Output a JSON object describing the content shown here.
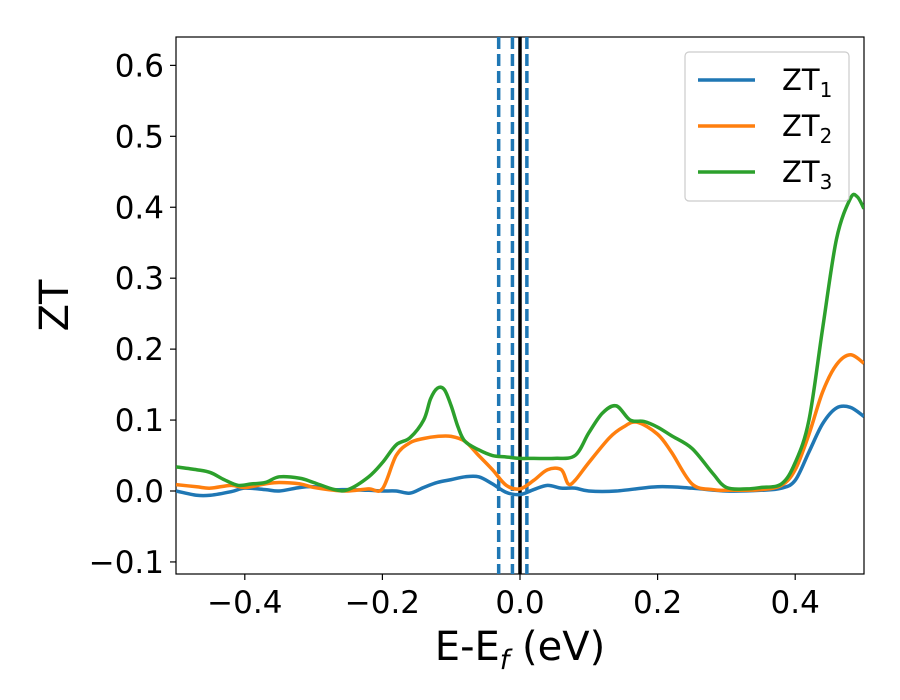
{
  "chart_data": {
    "type": "line",
    "xlabel": "E-E",
    "xlabel_sub": "f",
    "xlabel_unit": " (eV)",
    "ylabel": "ZT",
    "xlim": [
      -0.5,
      0.5
    ],
    "ylim": [
      -0.117,
      0.64
    ],
    "xticks": [
      -0.4,
      -0.2,
      0.0,
      0.2,
      0.4
    ],
    "xtick_labels": [
      "−0.4",
      "−0.2",
      "0.0",
      "0.2",
      "0.4"
    ],
    "yticks": [
      -0.1,
      0.0,
      0.1,
      0.2,
      0.3,
      0.4,
      0.5,
      0.6
    ],
    "ytick_labels": [
      "−0.1",
      "0.0",
      "0.1",
      "0.2",
      "0.3",
      "0.4",
      "0.5",
      "0.6"
    ],
    "grid": false,
    "legend_position": "top-right",
    "vlines": [
      {
        "x": -0.031,
        "color": "#1f77b4",
        "style": "dashed"
      },
      {
        "x": -0.011,
        "color": "#1f77b4",
        "style": "dashed"
      },
      {
        "x": 0.01,
        "color": "#1f77b4",
        "style": "dashed"
      },
      {
        "x": 0.0,
        "color": "#000000",
        "style": "solid"
      }
    ],
    "series": [
      {
        "name": "ZT",
        "subscript": "1",
        "color": "#1f77b4",
        "x": [
          -0.5,
          -0.47,
          -0.45,
          -0.42,
          -0.4,
          -0.37,
          -0.35,
          -0.32,
          -0.3,
          -0.27,
          -0.25,
          -0.22,
          -0.2,
          -0.18,
          -0.16,
          -0.14,
          -0.12,
          -0.1,
          -0.08,
          -0.06,
          -0.04,
          -0.02,
          0.0,
          0.02,
          0.04,
          0.06,
          0.08,
          0.1,
          0.14,
          0.2,
          0.25,
          0.3,
          0.35,
          0.38,
          0.4,
          0.42,
          0.44,
          0.46,
          0.48,
          0.5
        ],
        "y": [
          0.0,
          -0.006,
          -0.006,
          -0.001,
          0.004,
          0.002,
          0.0,
          0.005,
          0.006,
          0.002,
          0.002,
          0.001,
          0.0,
          0.0,
          -0.003,
          0.005,
          0.012,
          0.016,
          0.02,
          0.02,
          0.01,
          -0.002,
          -0.005,
          0.002,
          0.008,
          0.004,
          0.004,
          0.0,
          0.0,
          0.006,
          0.004,
          0.0,
          0.001,
          0.004,
          0.015,
          0.055,
          0.095,
          0.117,
          0.118,
          0.105
        ]
      },
      {
        "name": "ZT",
        "subscript": "2",
        "color": "#ff7f0e",
        "x": [
          -0.5,
          -0.47,
          -0.45,
          -0.42,
          -0.4,
          -0.37,
          -0.35,
          -0.32,
          -0.3,
          -0.27,
          -0.25,
          -0.22,
          -0.2,
          -0.18,
          -0.16,
          -0.14,
          -0.12,
          -0.1,
          -0.08,
          -0.06,
          -0.04,
          -0.02,
          0.0,
          0.02,
          0.04,
          0.06,
          0.07,
          0.08,
          0.1,
          0.13,
          0.15,
          0.17,
          0.2,
          0.22,
          0.25,
          0.28,
          0.3,
          0.35,
          0.38,
          0.4,
          0.42,
          0.44,
          0.46,
          0.48,
          0.5
        ],
        "y": [
          0.009,
          0.006,
          0.004,
          0.008,
          0.005,
          0.01,
          0.012,
          0.01,
          0.005,
          0.001,
          0.0,
          0.003,
          0.003,
          0.05,
          0.068,
          0.074,
          0.077,
          0.077,
          0.07,
          0.05,
          0.03,
          0.008,
          0.003,
          0.015,
          0.03,
          0.03,
          0.01,
          0.015,
          0.04,
          0.075,
          0.09,
          0.097,
          0.08,
          0.055,
          0.01,
          0.002,
          0.001,
          0.002,
          0.008,
          0.03,
          0.08,
          0.14,
          0.178,
          0.192,
          0.18
        ]
      },
      {
        "name": "ZT",
        "subscript": "3",
        "color": "#2ca02c",
        "x": [
          -0.5,
          -0.47,
          -0.45,
          -0.43,
          -0.41,
          -0.39,
          -0.37,
          -0.35,
          -0.32,
          -0.3,
          -0.27,
          -0.25,
          -0.22,
          -0.2,
          -0.18,
          -0.16,
          -0.14,
          -0.13,
          -0.12,
          -0.11,
          -0.1,
          -0.09,
          -0.08,
          -0.06,
          -0.04,
          -0.02,
          0.0,
          0.02,
          0.05,
          0.08,
          0.1,
          0.12,
          0.14,
          0.16,
          0.18,
          0.2,
          0.22,
          0.25,
          0.28,
          0.3,
          0.33,
          0.35,
          0.38,
          0.4,
          0.42,
          0.44,
          0.46,
          0.48,
          0.49,
          0.5
        ],
        "y": [
          0.034,
          0.03,
          0.026,
          0.016,
          0.008,
          0.01,
          0.012,
          0.02,
          0.018,
          0.012,
          0.002,
          0.002,
          0.02,
          0.04,
          0.065,
          0.075,
          0.1,
          0.13,
          0.145,
          0.143,
          0.12,
          0.09,
          0.07,
          0.058,
          0.05,
          0.048,
          0.046,
          0.046,
          0.046,
          0.05,
          0.082,
          0.11,
          0.12,
          0.1,
          0.098,
          0.09,
          0.078,
          0.06,
          0.025,
          0.005,
          0.003,
          0.005,
          0.01,
          0.04,
          0.1,
          0.23,
          0.355,
          0.412,
          0.415,
          0.398
        ]
      }
    ]
  }
}
